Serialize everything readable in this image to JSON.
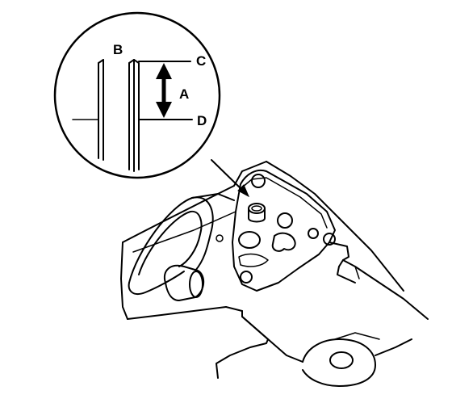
{
  "labels": {
    "a": "A",
    "b": "B",
    "c": "C",
    "d": "D"
  },
  "colors": {
    "line": "#000000",
    "background": "#ffffff"
  }
}
